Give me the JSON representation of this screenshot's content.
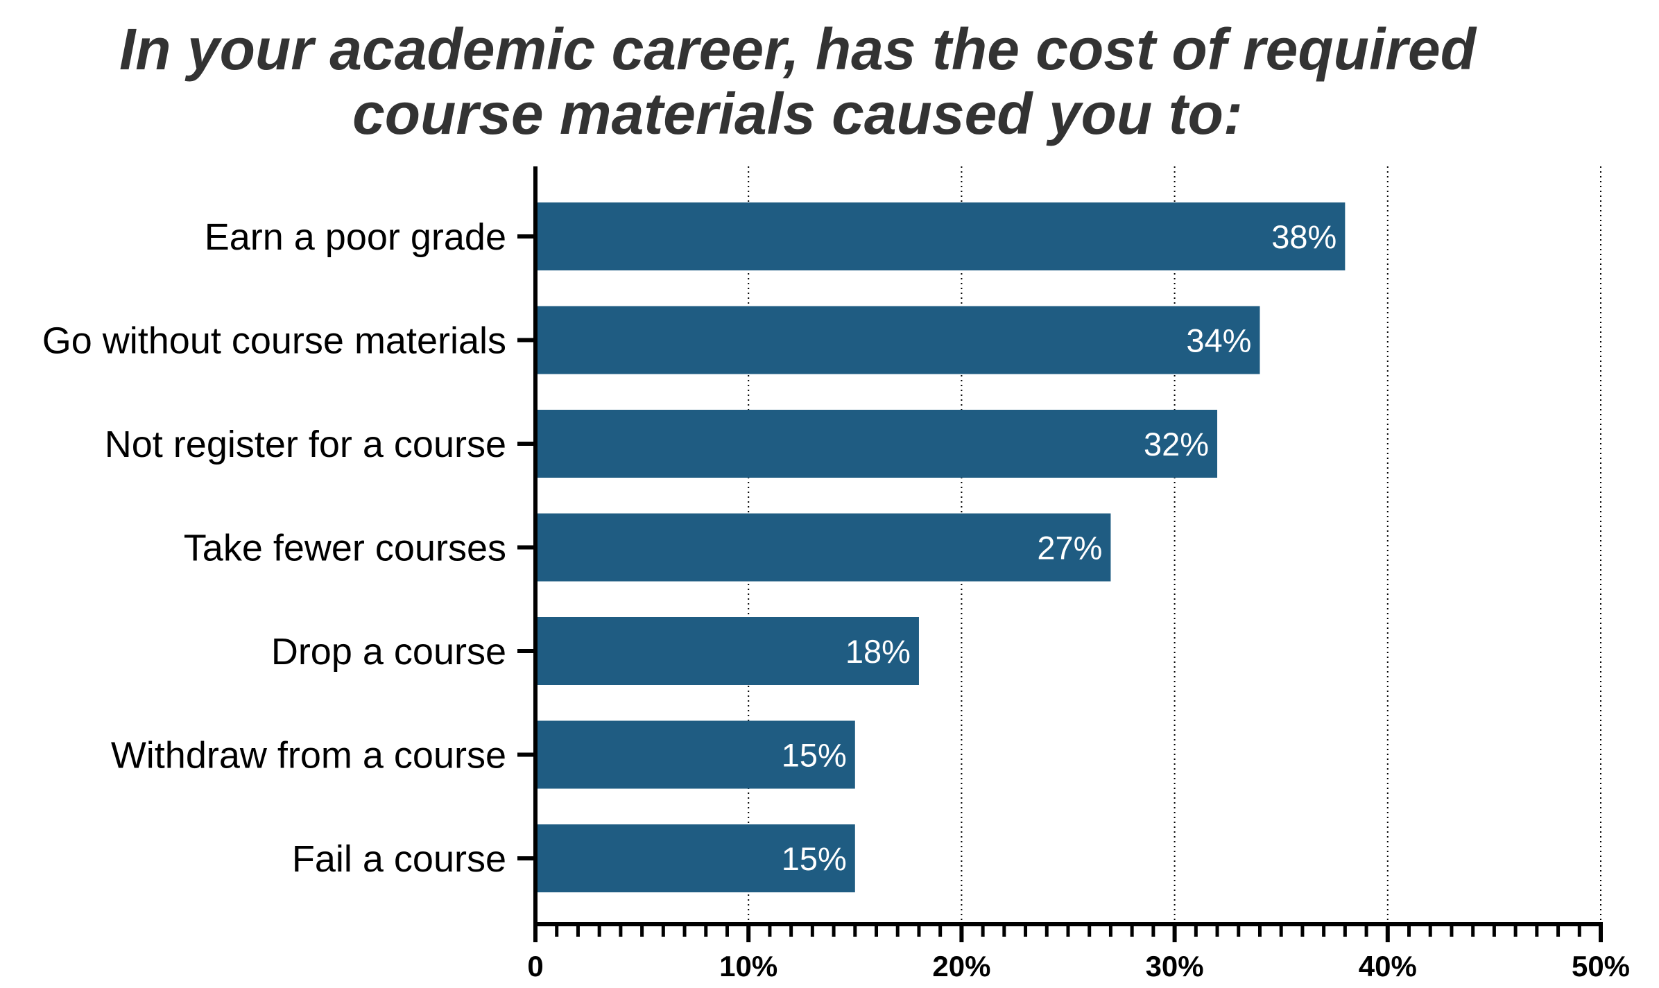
{
  "chart_data": {
    "type": "bar",
    "orientation": "horizontal",
    "title": "In your academic career, has the cost of required course materials caused you to:",
    "title_lines": [
      "In your academic career, has the cost of required",
      "course materials caused you to:"
    ],
    "categories": [
      "Earn a poor grade",
      "Go without course materials",
      "Not register for a course",
      "Take fewer courses",
      "Drop a course",
      "Withdraw from a course",
      "Fail a course"
    ],
    "values": [
      38,
      34,
      32,
      27,
      18,
      15,
      15
    ],
    "value_labels": [
      "38%",
      "34%",
      "32%",
      "27%",
      "18%",
      "15%",
      "15%"
    ],
    "xlim": [
      0,
      50
    ],
    "x_ticks": [
      0,
      10,
      20,
      30,
      40,
      50
    ],
    "x_tick_labels": [
      "0",
      "10%",
      "20%",
      "30%",
      "40%",
      "50%"
    ],
    "xlabel": "",
    "ylabel": "",
    "grid": "vertical dotted",
    "legend": "none",
    "bar_color": "#1f5c82",
    "value_label_color": "#ffffff",
    "title_color": "#333333",
    "text_color": "#000000"
  }
}
